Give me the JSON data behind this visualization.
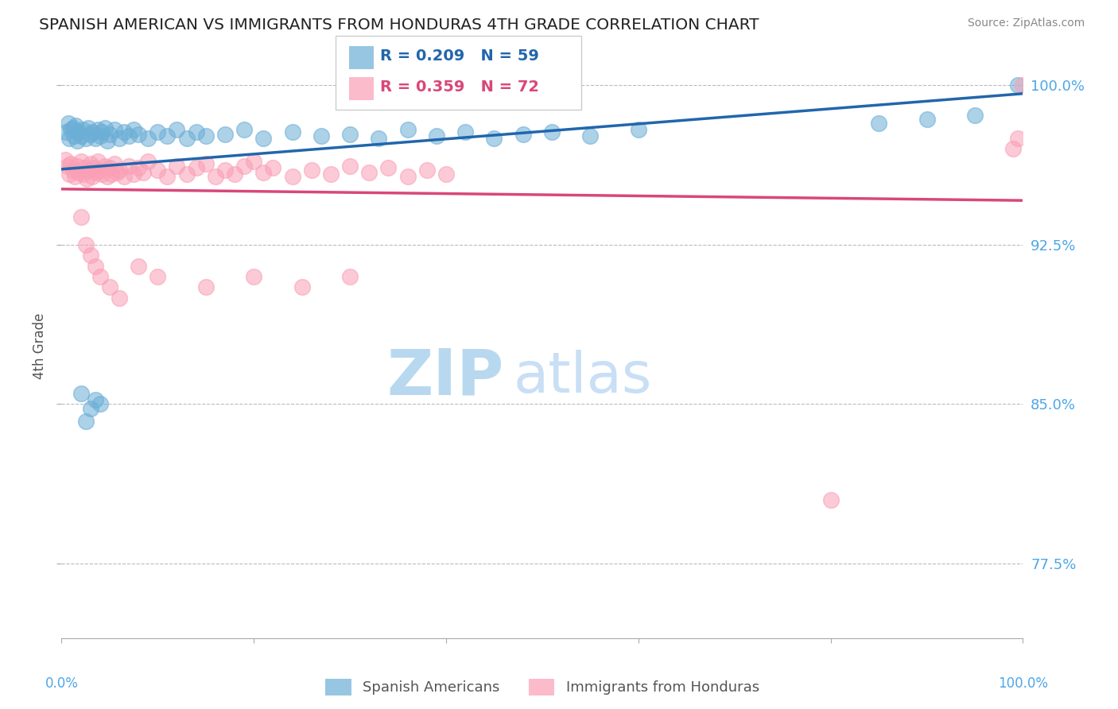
{
  "title": "SPANISH AMERICAN VS IMMIGRANTS FROM HONDURAS 4TH GRADE CORRELATION CHART",
  "source_text": "Source: ZipAtlas.com",
  "ylabel": "4th Grade",
  "y_ticks": [
    77.5,
    85.0,
    92.5,
    100.0
  ],
  "x_min": 0.0,
  "x_max": 100.0,
  "y_min": 74.0,
  "y_max": 101.5,
  "blue_R": 0.209,
  "blue_N": 59,
  "pink_R": 0.359,
  "pink_N": 72,
  "blue_color": "#6baed6",
  "pink_color": "#fa9fb5",
  "blue_line_color": "#2166ac",
  "pink_line_color": "#d9477a",
  "legend_label_blue": "Spanish Americans",
  "legend_label_pink": "Immigrants from Honduras",
  "watermark_zip": "ZIP",
  "watermark_atlas": "atlas",
  "watermark_color": "#cde4f5",
  "title_color": "#222222",
  "axis_label_color": "#555555",
  "tick_label_color": "#4da6e8",
  "source_color": "#888888",
  "grid_color": "#bbbbbb",
  "background_color": "#ffffff",
  "blue_x": [
    0.5,
    0.7,
    0.8,
    1.0,
    1.2,
    1.3,
    1.5,
    1.6,
    1.8,
    2.0,
    2.2,
    2.5,
    2.8,
    3.0,
    3.2,
    3.5,
    3.8,
    4.0,
    4.2,
    4.5,
    4.8,
    5.0,
    5.5,
    6.0,
    6.5,
    7.0,
    7.5,
    8.0,
    9.0,
    10.0,
    11.0,
    12.0,
    13.0,
    14.0,
    15.0,
    17.0,
    19.0,
    21.0,
    24.0,
    27.0,
    30.0,
    33.0,
    36.0,
    39.0,
    42.0,
    45.0,
    48.0,
    51.0,
    55.0,
    60.0,
    2.0,
    2.5,
    3.0,
    3.5,
    4.0,
    85.0,
    90.0,
    95.0,
    99.5
  ],
  "blue_y": [
    97.8,
    98.2,
    97.5,
    97.9,
    98.0,
    97.6,
    98.1,
    97.4,
    97.8,
    97.6,
    97.9,
    97.5,
    98.0,
    97.7,
    97.8,
    97.5,
    97.9,
    97.6,
    97.8,
    98.0,
    97.4,
    97.7,
    97.9,
    97.5,
    97.8,
    97.6,
    97.9,
    97.7,
    97.5,
    97.8,
    97.6,
    97.9,
    97.5,
    97.8,
    97.6,
    97.7,
    97.9,
    97.5,
    97.8,
    97.6,
    97.7,
    97.5,
    97.9,
    97.6,
    97.8,
    97.5,
    97.7,
    97.8,
    97.6,
    97.9,
    85.5,
    84.2,
    84.8,
    85.2,
    85.0,
    98.2,
    98.4,
    98.6,
    100.0
  ],
  "pink_x": [
    0.4,
    0.6,
    0.8,
    1.0,
    1.2,
    1.4,
    1.6,
    1.8,
    2.0,
    2.2,
    2.4,
    2.6,
    2.8,
    3.0,
    3.2,
    3.4,
    3.6,
    3.8,
    4.0,
    4.2,
    4.5,
    4.8,
    5.0,
    5.2,
    5.5,
    5.8,
    6.0,
    6.5,
    7.0,
    7.5,
    8.0,
    8.5,
    9.0,
    10.0,
    11.0,
    12.0,
    13.0,
    14.0,
    15.0,
    16.0,
    17.0,
    18.0,
    19.0,
    20.0,
    21.0,
    22.0,
    24.0,
    26.0,
    28.0,
    30.0,
    32.0,
    34.0,
    36.0,
    38.0,
    40.0,
    2.0,
    2.5,
    3.0,
    3.5,
    4.0,
    5.0,
    6.0,
    8.0,
    10.0,
    15.0,
    20.0,
    25.0,
    30.0,
    100.0,
    99.5,
    99.0,
    80.0
  ],
  "pink_y": [
    96.5,
    96.2,
    95.8,
    96.3,
    96.0,
    95.7,
    96.2,
    95.9,
    96.4,
    95.8,
    96.1,
    95.6,
    96.0,
    96.3,
    95.7,
    96.1,
    95.9,
    96.4,
    96.0,
    95.8,
    96.2,
    95.7,
    96.1,
    95.8,
    96.3,
    95.9,
    96.0,
    95.7,
    96.2,
    95.8,
    96.1,
    95.9,
    96.4,
    96.0,
    95.7,
    96.2,
    95.8,
    96.1,
    96.3,
    95.7,
    96.0,
    95.8,
    96.2,
    96.4,
    95.9,
    96.1,
    95.7,
    96.0,
    95.8,
    96.2,
    95.9,
    96.1,
    95.7,
    96.0,
    95.8,
    93.8,
    92.5,
    92.0,
    91.5,
    91.0,
    90.5,
    90.0,
    91.5,
    91.0,
    90.5,
    91.0,
    90.5,
    91.0,
    100.0,
    97.5,
    97.0,
    80.5
  ]
}
